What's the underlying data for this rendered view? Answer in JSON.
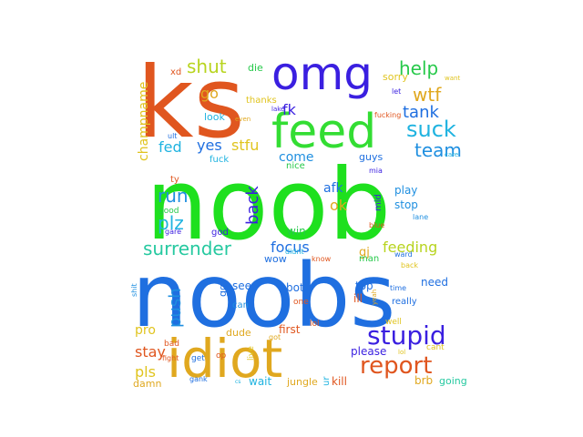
{
  "words": [
    {
      "text": "noob",
      "color": "#1ee01e"
    },
    {
      "text": "noobs",
      "color": "#1f6fe0"
    },
    {
      "text": "ks",
      "color": "#e0561f"
    },
    {
      "text": "omg",
      "color": "#3a1fe0"
    },
    {
      "text": "feed",
      "color": "#33dd33"
    },
    {
      "text": "idiot",
      "color": "#e0a81f"
    },
    {
      "text": "stupid",
      "color": "#3a1fe0"
    },
    {
      "text": "report",
      "color": "#e0561f"
    },
    {
      "text": "surrender",
      "color": "#26c9a0"
    },
    {
      "text": "help",
      "color": "#26c94a"
    },
    {
      "text": "wtf",
      "color": "#e0a81f"
    },
    {
      "text": "suck",
      "color": "#1fb3e0"
    },
    {
      "text": "tank",
      "color": "#1f6fe0"
    },
    {
      "text": "team",
      "color": "#1f8fe0"
    },
    {
      "text": "shut",
      "color": "#b8d41f"
    },
    {
      "text": "feeding",
      "color": "#b8d41f"
    },
    {
      "text": "focus",
      "color": "#1f6fe0"
    },
    {
      "text": "champname",
      "color": "#e0c41f"
    },
    {
      "text": "push",
      "color": "#1f8fe0"
    },
    {
      "text": "run",
      "color": "#1f8fe0"
    },
    {
      "text": "plz",
      "color": "#1fb3e0"
    },
    {
      "text": "back",
      "color": "#3a1fe0"
    },
    {
      "text": "fed",
      "color": "#1fb3e0"
    },
    {
      "text": "yes",
      "color": "#1f6fe0"
    },
    {
      "text": "stfu",
      "color": "#e0c41f"
    },
    {
      "text": "come",
      "color": "#1f8fe0"
    },
    {
      "text": "fk",
      "color": "#3a1fe0"
    },
    {
      "text": "afk",
      "color": "#1f6fe0"
    },
    {
      "text": "ok",
      "color": "#e0a81f"
    },
    {
      "text": "go",
      "color": "#e0a81f"
    },
    {
      "text": "stay",
      "color": "#e0561f"
    },
    {
      "text": "pls",
      "color": "#e0c41f"
    },
    {
      "text": "pro",
      "color": "#e0c41f"
    },
    {
      "text": "play",
      "color": "#1f8fe0"
    },
    {
      "text": "stop",
      "color": "#1f8fe0"
    },
    {
      "text": "guys",
      "color": "#1f6fe0"
    },
    {
      "text": "gj",
      "color": "#e0a81f"
    },
    {
      "text": "man",
      "color": "#26c94a"
    },
    {
      "text": "top",
      "color": "#1f6fe0"
    },
    {
      "text": "ill",
      "color": "#e0561f"
    },
    {
      "text": "bot",
      "color": "#1f6fe0"
    },
    {
      "text": "need",
      "color": "#1f6fe0"
    },
    {
      "text": "please",
      "color": "#3a1fe0"
    },
    {
      "text": "first",
      "color": "#e0561f"
    },
    {
      "text": "dude",
      "color": "#e0a81f"
    },
    {
      "text": "kill",
      "color": "#e0561f"
    },
    {
      "text": "wait",
      "color": "#1fb3e0"
    },
    {
      "text": "jungle",
      "color": "#e0a81f"
    },
    {
      "text": "damn",
      "color": "#e0a81f"
    },
    {
      "text": "brb",
      "color": "#e0a81f"
    },
    {
      "text": "going",
      "color": "#26c9a0"
    },
    {
      "text": "really",
      "color": "#1f6fe0"
    },
    {
      "text": "see",
      "color": "#1f6fe0"
    },
    {
      "text": "win",
      "color": "#26c94a"
    },
    {
      "text": "wow",
      "color": "#1f6fe0"
    },
    {
      "text": "god",
      "color": "#3a1fe0"
    },
    {
      "text": "nice",
      "color": "#26c94a"
    },
    {
      "text": "fuck",
      "color": "#1fb3e0"
    },
    {
      "text": "look",
      "color": "#1fb3e0"
    },
    {
      "text": "thanks",
      "color": "#e0c41f"
    },
    {
      "text": "sorry",
      "color": "#e0c41f"
    },
    {
      "text": "die",
      "color": "#26c94a"
    },
    {
      "text": "xd",
      "color": "#e0561f"
    },
    {
      "text": "ty",
      "color": "#e0561f"
    },
    {
      "text": "good",
      "color": "#26c94a"
    },
    {
      "text": "mia",
      "color": "#3a1fe0"
    },
    {
      "text": "mid",
      "color": "#3a1fe0"
    },
    {
      "text": "lol",
      "color": "#e0561f"
    },
    {
      "text": "cant",
      "color": "#e0c41f"
    },
    {
      "text": "well",
      "color": "#e0c41f"
    },
    {
      "text": "get",
      "color": "#1f6fe0"
    },
    {
      "text": "bad",
      "color": "#e0561f"
    },
    {
      "text": "gank",
      "color": "#1f6fe0"
    },
    {
      "text": "op",
      "color": "#e0561f"
    },
    {
      "text": "one",
      "color": "#e0561f"
    },
    {
      "text": "shit",
      "color": "#1f8fe0"
    },
    {
      "text": "know",
      "color": "#e0561f"
    },
    {
      "text": "lane",
      "color": "#1f8fe0"
    },
    {
      "text": "time",
      "color": "#1f6fe0"
    },
    {
      "text": "let",
      "color": "#3a1fe0"
    },
    {
      "text": "blue",
      "color": "#e0561f"
    },
    {
      "text": "didnt",
      "color": "#1fb3e0"
    },
    {
      "text": "ur",
      "color": "#1fb3e0"
    },
    {
      "text": "got",
      "color": "#e0a81f"
    },
    {
      "text": "fight",
      "color": "#e0561f"
    },
    {
      "text": "ward",
      "color": "#1f6fe0"
    },
    {
      "text": "back",
      "color": "#e0c41f"
    },
    {
      "text": "yeah",
      "color": "#e0a81f"
    },
    {
      "text": "want",
      "color": "#e0c41f"
    },
    {
      "text": "care",
      "color": "#1fb3e0"
    },
    {
      "text": "gg",
      "color": "#1f6fe0"
    },
    {
      "text": "can",
      "color": "#1f8fe0"
    },
    {
      "text": "live",
      "color": "#e0c41f"
    },
    {
      "text": "even",
      "color": "#e0a81f"
    },
    {
      "text": "fucking",
      "color": "#e0561f"
    },
    {
      "text": "cs",
      "color": "#1fb3e0"
    },
    {
      "text": "ult",
      "color": "#1f6fe0"
    },
    {
      "text": "gare",
      "color": "#3a1fe0"
    },
    {
      "text": "lake",
      "color": "#3a1fe0"
    },
    {
      "text": "lol",
      "color": "#e0c41f"
    }
  ]
}
